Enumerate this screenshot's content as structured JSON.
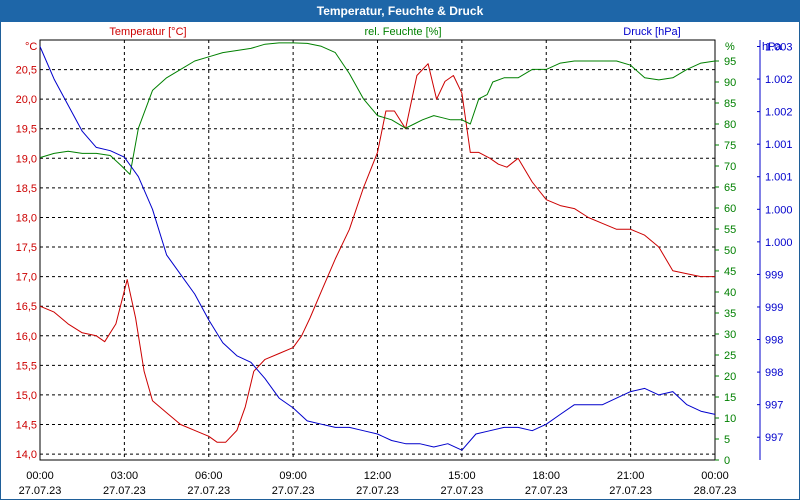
{
  "window": {
    "title": "Temperatur, Feuchte & Druck"
  },
  "chart_data": {
    "type": "line",
    "title": "Temperatur, Feuchte & Druck",
    "x_ticks": [
      {
        "time": "00:00",
        "date": "27.07.23"
      },
      {
        "time": "03:00",
        "date": "27.07.23"
      },
      {
        "time": "06:00",
        "date": "27.07.23"
      },
      {
        "time": "09:00",
        "date": "27.07.23"
      },
      {
        "time": "12:00",
        "date": "27.07.23"
      },
      {
        "time": "15:00",
        "date": "27.07.23"
      },
      {
        "time": "18:00",
        "date": "27.07.23"
      },
      {
        "time": "21:00",
        "date": "27.07.23"
      },
      {
        "time": "00:00",
        "date": "28.07.23"
      }
    ],
    "xlim_hours": [
      0,
      24
    ],
    "axes": {
      "temperature": {
        "unit": "°C",
        "label": "Temperatur [°C]",
        "ylim": [
          13.9,
          21.0
        ],
        "ticks": [
          "20,5",
          "20,0",
          "19,5",
          "19,0",
          "18,5",
          "18,0",
          "17,5",
          "17,0",
          "16,5",
          "16,0",
          "15,5",
          "15,0",
          "14,5",
          "14,0"
        ],
        "tick_values": [
          20.5,
          20.0,
          19.5,
          19.0,
          18.5,
          18.0,
          17.5,
          17.0,
          16.5,
          16.0,
          15.5,
          15.0,
          14.5,
          14.0
        ],
        "color": "#cc0000"
      },
      "humidity": {
        "unit": "%",
        "label": "rel. Feuchte [%]",
        "ylim": [
          0,
          100
        ],
        "ticks": [
          "95",
          "90",
          "85",
          "80",
          "75",
          "70",
          "65",
          "60",
          "55",
          "50",
          "45",
          "40",
          "35",
          "30",
          "25",
          "20",
          "15",
          "10",
          "5",
          "0"
        ],
        "tick_values": [
          95,
          90,
          85,
          80,
          75,
          70,
          65,
          60,
          55,
          50,
          45,
          40,
          35,
          30,
          25,
          20,
          15,
          10,
          5,
          0
        ],
        "color": "#008000"
      },
      "pressure": {
        "unit": "hPa",
        "label": "Druck [hPa]",
        "ylim": [
          996.65,
          1003.1
        ],
        "ticks": [
          "1.003",
          "1.002",
          "1.002",
          "1.001",
          "1.001",
          "1.000",
          "1.000",
          "999",
          "999",
          "998",
          "998",
          "997",
          "997"
        ],
        "tick_values": [
          1003.0,
          1002.5,
          1002.0,
          1001.5,
          1001.0,
          1000.5,
          1000.0,
          999.5,
          999.0,
          998.5,
          998.0,
          997.5,
          997.0
        ],
        "color": "#0000cc"
      }
    },
    "series": [
      {
        "name": "Temperatur [°C]",
        "axis": "temperature",
        "color": "#cc0000",
        "x": [
          0,
          0.5,
          1,
          1.5,
          2,
          2.3,
          2.7,
          3.1,
          3.4,
          3.7,
          4,
          4.5,
          5,
          5.5,
          6,
          6.3,
          6.6,
          7,
          7.3,
          7.6,
          8,
          8.5,
          9,
          9.3,
          9.6,
          10,
          10.5,
          11,
          11.5,
          12,
          12.3,
          12.6,
          13,
          13.4,
          13.8,
          14.1,
          14.4,
          14.7,
          15,
          15.3,
          15.6,
          16,
          16.3,
          16.6,
          17,
          17.5,
          18,
          18.5,
          19,
          19.5,
          20,
          20.5,
          21,
          21.5,
          22,
          22.5,
          23,
          23.5,
          24
        ],
        "values": [
          16.5,
          16.4,
          16.2,
          16.05,
          16.0,
          15.9,
          16.2,
          16.95,
          16.3,
          15.4,
          14.9,
          14.7,
          14.5,
          14.4,
          14.3,
          14.2,
          14.2,
          14.4,
          14.8,
          15.4,
          15.6,
          15.7,
          15.8,
          16.0,
          16.3,
          16.75,
          17.3,
          17.8,
          18.5,
          19.1,
          19.8,
          19.8,
          19.5,
          20.4,
          20.6,
          20.0,
          20.3,
          20.4,
          20.1,
          19.1,
          19.1,
          19.0,
          18.9,
          18.85,
          19.0,
          18.6,
          18.3,
          18.2,
          18.15,
          18.0,
          17.9,
          17.8,
          17.8,
          17.7,
          17.5,
          17.1,
          17.05,
          17.0,
          17.0
        ]
      },
      {
        "name": "rel. Feuchte [%]",
        "axis": "humidity",
        "color": "#008000",
        "x": [
          0,
          0.5,
          1,
          1.5,
          2,
          2.5,
          2.9,
          3.2,
          3.5,
          4,
          4.5,
          5,
          5.5,
          6,
          6.5,
          7,
          7.5,
          8,
          8.5,
          9,
          9.5,
          10,
          10.5,
          11,
          11.5,
          12,
          12.5,
          13,
          13.3,
          13.6,
          14,
          14.3,
          14.6,
          15,
          15.3,
          15.6,
          15.9,
          16.1,
          16.5,
          17,
          17.5,
          18,
          18.5,
          19,
          19.5,
          20,
          20.5,
          21,
          21.5,
          22,
          22.5,
          23,
          23.5,
          24
        ],
        "values": [
          72,
          73,
          73.5,
          73,
          73,
          72.5,
          70,
          68,
          79,
          88,
          91,
          93,
          95,
          96,
          97,
          97.5,
          98,
          99,
          99.3,
          99.3,
          99.2,
          98.5,
          97,
          92,
          86,
          82,
          81,
          79,
          80,
          81,
          82,
          81.5,
          81,
          81,
          80,
          86,
          87,
          90,
          91,
          91,
          93,
          93,
          94.5,
          95,
          95,
          95,
          95,
          94,
          91,
          90.5,
          91,
          93,
          94.5,
          95
        ]
      },
      {
        "name": "Druck [hPa]",
        "axis": "pressure",
        "color": "#0000cc",
        "x": [
          0,
          0.5,
          1,
          1.5,
          2,
          2.5,
          3,
          3.5,
          4,
          4.5,
          5,
          5.5,
          6,
          6.5,
          7,
          7.5,
          8,
          8.5,
          9,
          9.5,
          10,
          10.5,
          11,
          11.5,
          12,
          12.5,
          13,
          13.5,
          14,
          14.5,
          15,
          15.5,
          16,
          16.5,
          17,
          17.5,
          18,
          18.5,
          19,
          19.5,
          20,
          20.5,
          21,
          21.5,
          22,
          22.5,
          23,
          23.5,
          24
        ],
        "values": [
          1003.0,
          1002.5,
          1002.1,
          1001.7,
          1001.45,
          1001.4,
          1001.3,
          1001.0,
          1000.5,
          999.8,
          999.5,
          999.2,
          998.8,
          998.45,
          998.25,
          998.15,
          997.9,
          997.6,
          997.45,
          997.25,
          997.2,
          997.15,
          997.15,
          997.1,
          997.05,
          996.95,
          996.9,
          996.9,
          996.85,
          996.9,
          996.8,
          997.05,
          997.1,
          997.15,
          997.15,
          997.1,
          997.2,
          997.35,
          997.5,
          997.5,
          997.5,
          997.6,
          997.7,
          997.75,
          997.65,
          997.7,
          997.5,
          997.4,
          997.35
        ]
      }
    ]
  }
}
